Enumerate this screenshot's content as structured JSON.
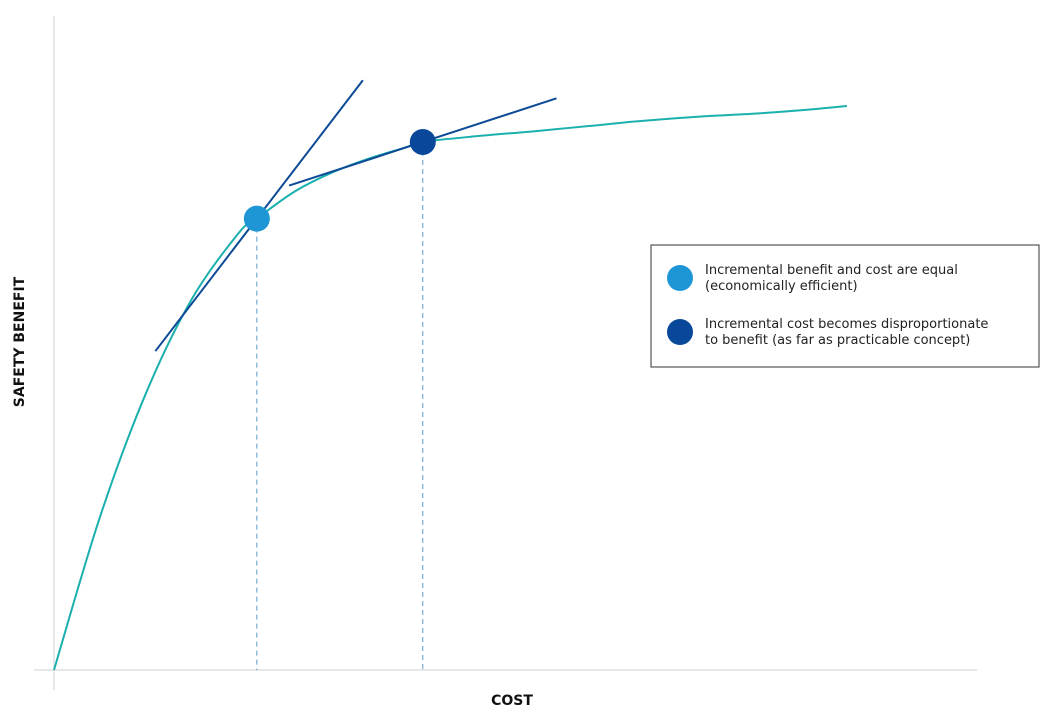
{
  "chart_data": {
    "type": "line",
    "title": "",
    "xlabel": "COST",
    "ylabel": "SAFETY BENEFIT",
    "xlim": [
      0,
      100
    ],
    "ylim": [
      0,
      100
    ],
    "grid": false,
    "legend_position": "right",
    "series": [
      {
        "color": "#1bb0ad",
        "x": [
          0,
          5,
          10,
          15,
          20,
          22,
          26,
          30,
          34,
          38,
          40,
          46,
          52,
          58,
          64,
          70,
          76,
          82,
          86
        ],
        "y": [
          0,
          26,
          47,
          63,
          74,
          76.5,
          81,
          84.2,
          86.6,
          88.5,
          89.5,
          90.5,
          91.3,
          92.2,
          93.1,
          93.8,
          94.3,
          95,
          95.6
        ]
      }
    ],
    "points": [
      {
        "x": 22,
        "y": 76.5,
        "color": "#1e96d6",
        "label": "Incremental benefit and cost are equal (economically efficient)",
        "label_lines": [
          "Incremental benefit and cost are equal",
          "(economically efficient)"
        ],
        "tangent_slope": 2.04
      },
      {
        "x": 40,
        "y": 89.5,
        "color": "#08479a",
        "label": "Incremental cost becomes disproportionate to benefit (as far as practicable concept)",
        "label_lines": [
          "Incremental cost becomes disproportionate",
          "to benefit (as far as practicable concept)"
        ],
        "tangent_slope": 0.51
      }
    ],
    "colors": {
      "curve": "#1bb0ad",
      "tangent": "#0c4a95",
      "axis": "#cfcfcf",
      "guide": "#5b9bc8",
      "legend_border": "#333333"
    }
  }
}
